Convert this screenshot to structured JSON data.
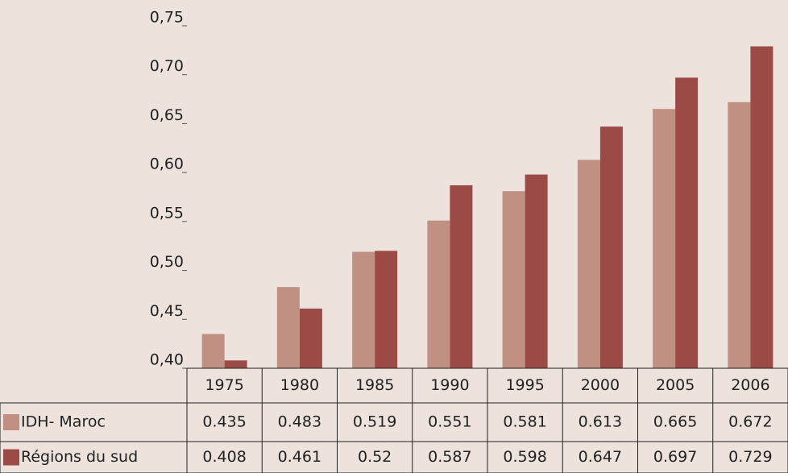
{
  "chart_data": {
    "type": "bar",
    "categories": [
      "1975",
      "1980",
      "1985",
      "1990",
      "1995",
      "2000",
      "2005",
      "2006"
    ],
    "series": [
      {
        "name": "IDH- Maroc",
        "color": "#c09182",
        "values": [
          0.435,
          0.483,
          0.519,
          0.551,
          0.581,
          0.613,
          0.665,
          0.672
        ]
      },
      {
        "name": "Régions du sud",
        "color": "#9b4a45",
        "values": [
          0.408,
          0.461,
          0.52,
          0.587,
          0.598,
          0.647,
          0.697,
          0.729
        ]
      }
    ],
    "ylim": [
      0.4,
      0.75
    ],
    "yticks": [
      {
        "value": 0.4,
        "label": "0,40"
      },
      {
        "value": 0.45,
        "label": "0,45"
      },
      {
        "value": 0.5,
        "label": "0,50"
      },
      {
        "value": 0.55,
        "label": "0,55"
      },
      {
        "value": 0.6,
        "label": "0,60"
      },
      {
        "value": 0.65,
        "label": "0,65"
      },
      {
        "value": 0.7,
        "label": "0,70"
      },
      {
        "value": 0.75,
        "label": "0,75"
      }
    ],
    "data_table": true
  }
}
